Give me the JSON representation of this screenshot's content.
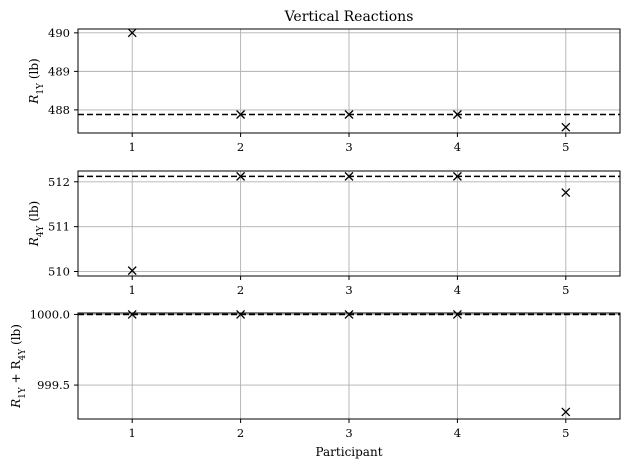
{
  "chart_data": [
    {
      "type": "scatter",
      "title": "Vertical Reactions",
      "ylabel": "R_{1Y} (lb)",
      "ylabel_main": "R",
      "ylabel_sub": "1Y",
      "ylabel_unit": " (lb)",
      "xlabel": "",
      "x": [
        1,
        2,
        3,
        4,
        5
      ],
      "y": [
        490.0,
        487.88,
        487.88,
        487.88,
        487.55
      ],
      "xlim": [
        0.5,
        5.5
      ],
      "ylim": [
        487.4,
        490.1
      ],
      "xticks": [
        1,
        2,
        3,
        4,
        5
      ],
      "yticks": [
        488,
        489,
        490
      ],
      "reference_line": 487.88,
      "marker": "x",
      "grid": true
    },
    {
      "type": "scatter",
      "title": "",
      "ylabel": "R_{4Y} (lb)",
      "ylabel_main": "R",
      "ylabel_sub": "4Y",
      "ylabel_unit": " (lb)",
      "xlabel": "",
      "x": [
        1,
        2,
        3,
        4,
        5
      ],
      "y": [
        510.02,
        512.12,
        512.12,
        512.12,
        511.76
      ],
      "xlim": [
        0.5,
        5.5
      ],
      "ylim": [
        509.9,
        512.24
      ],
      "xticks": [
        1,
        2,
        3,
        4,
        5
      ],
      "yticks": [
        510,
        511,
        512
      ],
      "reference_line": 512.12,
      "marker": "x",
      "grid": true
    },
    {
      "type": "scatter",
      "title": "",
      "ylabel": "R_{1Y} + R_{4Y} (lb)",
      "ylabel_parts": [
        "R",
        "1Y",
        " + R",
        "4Y",
        " (lb)"
      ],
      "xlabel": "Participant",
      "x": [
        1,
        2,
        3,
        4,
        5
      ],
      "y": [
        1000.0,
        1000.0,
        1000.0,
        1000.0,
        999.31
      ],
      "xlim": [
        0.5,
        5.5
      ],
      "ylim": [
        999.26,
        1000.01
      ],
      "xticks": [
        1,
        2,
        3,
        4,
        5
      ],
      "yticks": [
        999.5,
        1000.0
      ],
      "ytick_labels": [
        "999.5",
        "1000.0"
      ],
      "reference_line": 1000.0,
      "marker": "x",
      "grid": true
    }
  ],
  "colors": {
    "marker": "#000000",
    "grid": "#b0b0b0",
    "reference_line": "#000000",
    "axes": "#000000"
  }
}
